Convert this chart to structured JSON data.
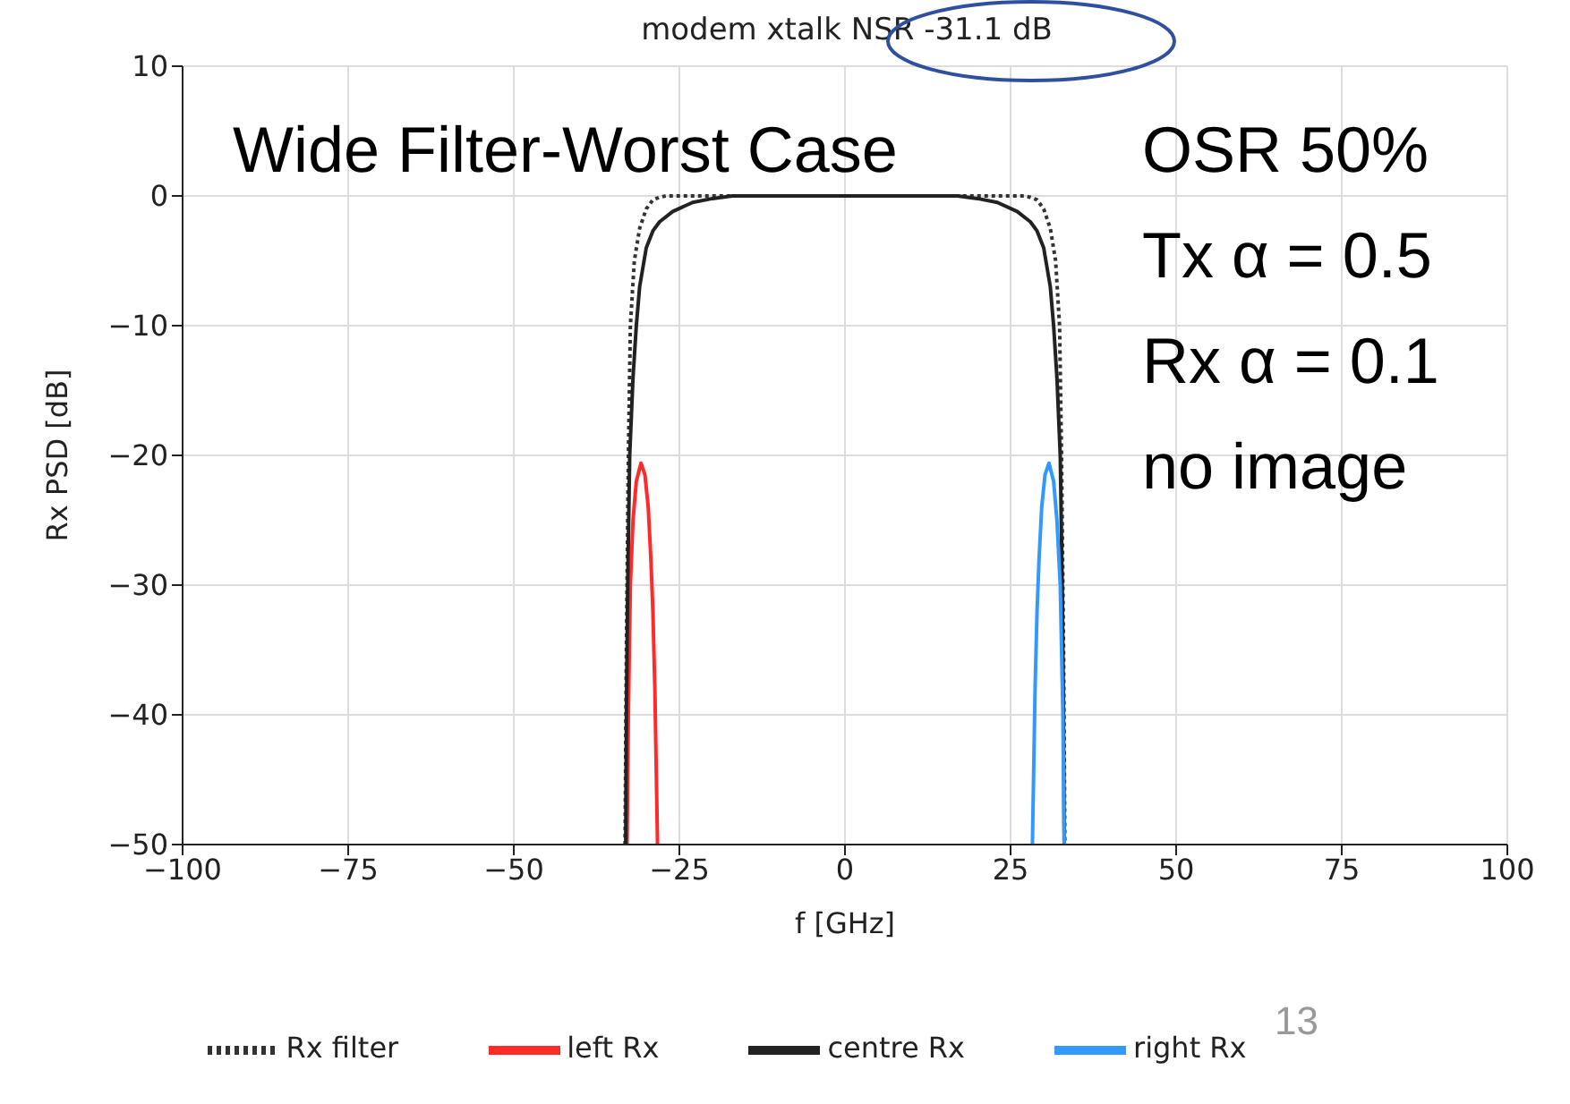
{
  "chart_data": {
    "type": "line",
    "title": "modem xtalk NSR -31.1 dB",
    "xlabel": "f [GHz]",
    "ylabel": "Rx PSD [dB]",
    "xlim": [
      -100,
      100
    ],
    "xticks": [
      {
        "value": -100,
        "label": "−100"
      },
      {
        "value": -75,
        "label": "−75"
      },
      {
        "value": -50,
        "label": "−50"
      },
      {
        "value": -25,
        "label": "−25"
      },
      0,
      25,
      50,
      75,
      100
    ],
    "ylim": [
      -50,
      10
    ],
    "yticks": [
      {
        "value": -50,
        "label": "−50"
      },
      {
        "value": -40,
        "label": "−40"
      },
      {
        "value": -30,
        "label": "−30"
      },
      {
        "value": -20,
        "label": "−20"
      },
      {
        "value": -10,
        "label": "−10"
      },
      0,
      10
    ],
    "grid": true,
    "legend": "bottom",
    "marker": "none",
    "annotations": [
      "Wide Filter-Worst Case",
      "OSR 50%",
      "Tx α = 0.5",
      "Rx α = 0.1",
      "no image",
      "13"
    ],
    "series": [
      {
        "name": "Rx filter",
        "color": "#333333",
        "line_style": "dotted",
        "x": [
          -33.2,
          -33,
          -32.7,
          -32.4,
          -31.8,
          -31,
          -30,
          -29,
          -28,
          -27,
          27,
          28,
          29,
          30,
          31,
          31.8,
          32.4,
          32.7,
          33,
          33.2
        ],
        "values": [
          -50,
          -35,
          -20,
          -10,
          -5,
          -2.5,
          -1,
          -0.3,
          -0.1,
          0,
          0,
          -0.1,
          -0.3,
          -1,
          -2.5,
          -5,
          -10,
          -20,
          -35,
          -50
        ]
      },
      {
        "name": "left Rx",
        "color": "#ff2a2a",
        "line_style": "solid",
        "x": [
          -32.9,
          -32.7,
          -32.4,
          -32,
          -31.5,
          -30.8,
          -30.2,
          -29.7,
          -29.3,
          -29,
          -28.7,
          -28.5,
          -28.3
        ],
        "values": [
          -50,
          -40,
          -30,
          -25,
          -22,
          -20.6,
          -21.5,
          -24,
          -28,
          -32,
          -38,
          -44,
          -50
        ]
      },
      {
        "name": "centre Rx",
        "color": "#222222",
        "line_style": "solid",
        "x": [
          -33.1,
          -33,
          -32.8,
          -32.5,
          -32,
          -31.5,
          -31,
          -30,
          -29,
          -28,
          -26,
          -23,
          -20,
          -17,
          17,
          20,
          23,
          26,
          28,
          29,
          30,
          31,
          31.5,
          32,
          32.5,
          32.8,
          33,
          33.1
        ],
        "values": [
          -50,
          -40,
          -30,
          -20,
          -14,
          -10,
          -7,
          -4,
          -2.7,
          -2,
          -1.2,
          -0.5,
          -0.2,
          0,
          0,
          -0.2,
          -0.5,
          -1.2,
          -2,
          -2.7,
          -4,
          -7,
          -10,
          -14,
          -20,
          -30,
          -40,
          -50
        ]
      },
      {
        "name": "right Rx",
        "color": "#3399ff",
        "line_style": "solid",
        "x": [
          28.3,
          28.5,
          28.7,
          29,
          29.3,
          29.7,
          30.2,
          30.8,
          31.5,
          32,
          32.5,
          32.9,
          33.1
        ],
        "values": [
          -50,
          -44,
          -38,
          -32,
          -28,
          -24,
          -21.5,
          -20.6,
          -22,
          -25,
          -30,
          -40,
          -50
        ]
      }
    ]
  }
}
